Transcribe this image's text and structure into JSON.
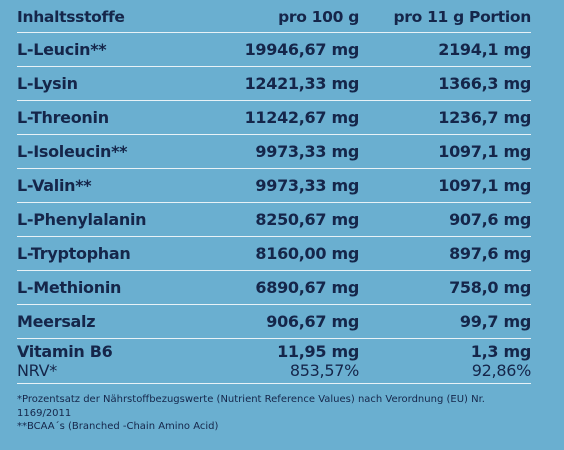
{
  "header": {
    "name": "Inhaltsstoffe",
    "per100": "pro 100 g",
    "perPortion": "pro 11 g Portion"
  },
  "rows": [
    {
      "name": "L-Leucin**",
      "per100": "19946,67 mg",
      "perPortion": "2194,1 mg"
    },
    {
      "name": "L-Lysin",
      "per100": "12421,33 mg",
      "perPortion": "1366,3 mg"
    },
    {
      "name": "L-Threonin",
      "per100": "11242,67 mg",
      "perPortion": "1236,7 mg"
    },
    {
      "name": "L-Isoleucin**",
      "per100": "9973,33 mg",
      "perPortion": "1097,1 mg"
    },
    {
      "name": "L-Valin**",
      "per100": "9973,33 mg",
      "perPortion": "1097,1 mg"
    },
    {
      "name": "L-Phenylalanin",
      "per100": "8250,67 mg",
      "perPortion": "907,6 mg"
    },
    {
      "name": "L-Tryptophan",
      "per100": "8160,00 mg",
      "perPortion": "897,6 mg"
    },
    {
      "name": "L-Methionin",
      "per100": "6890,67 mg",
      "perPortion": "758,0 mg"
    },
    {
      "name": "Meersalz",
      "per100": "906,67 mg",
      "perPortion": "99,7 mg"
    },
    {
      "name": "Vitamin B6",
      "per100": "11,95 mg",
      "perPortion": "1,3 mg"
    }
  ],
  "nrv": {
    "name": "NRV*",
    "per100": "853,57%",
    "perPortion": "92,86%"
  },
  "footnotes": {
    "line1": "*Prozentsatz der Nährstoffbezugswerte (Nutrient Reference Values) nach Verordnung (EU) Nr. 1169/2011",
    "line2": "**BCAA´s (Branched -Chain Amino Acid)"
  }
}
